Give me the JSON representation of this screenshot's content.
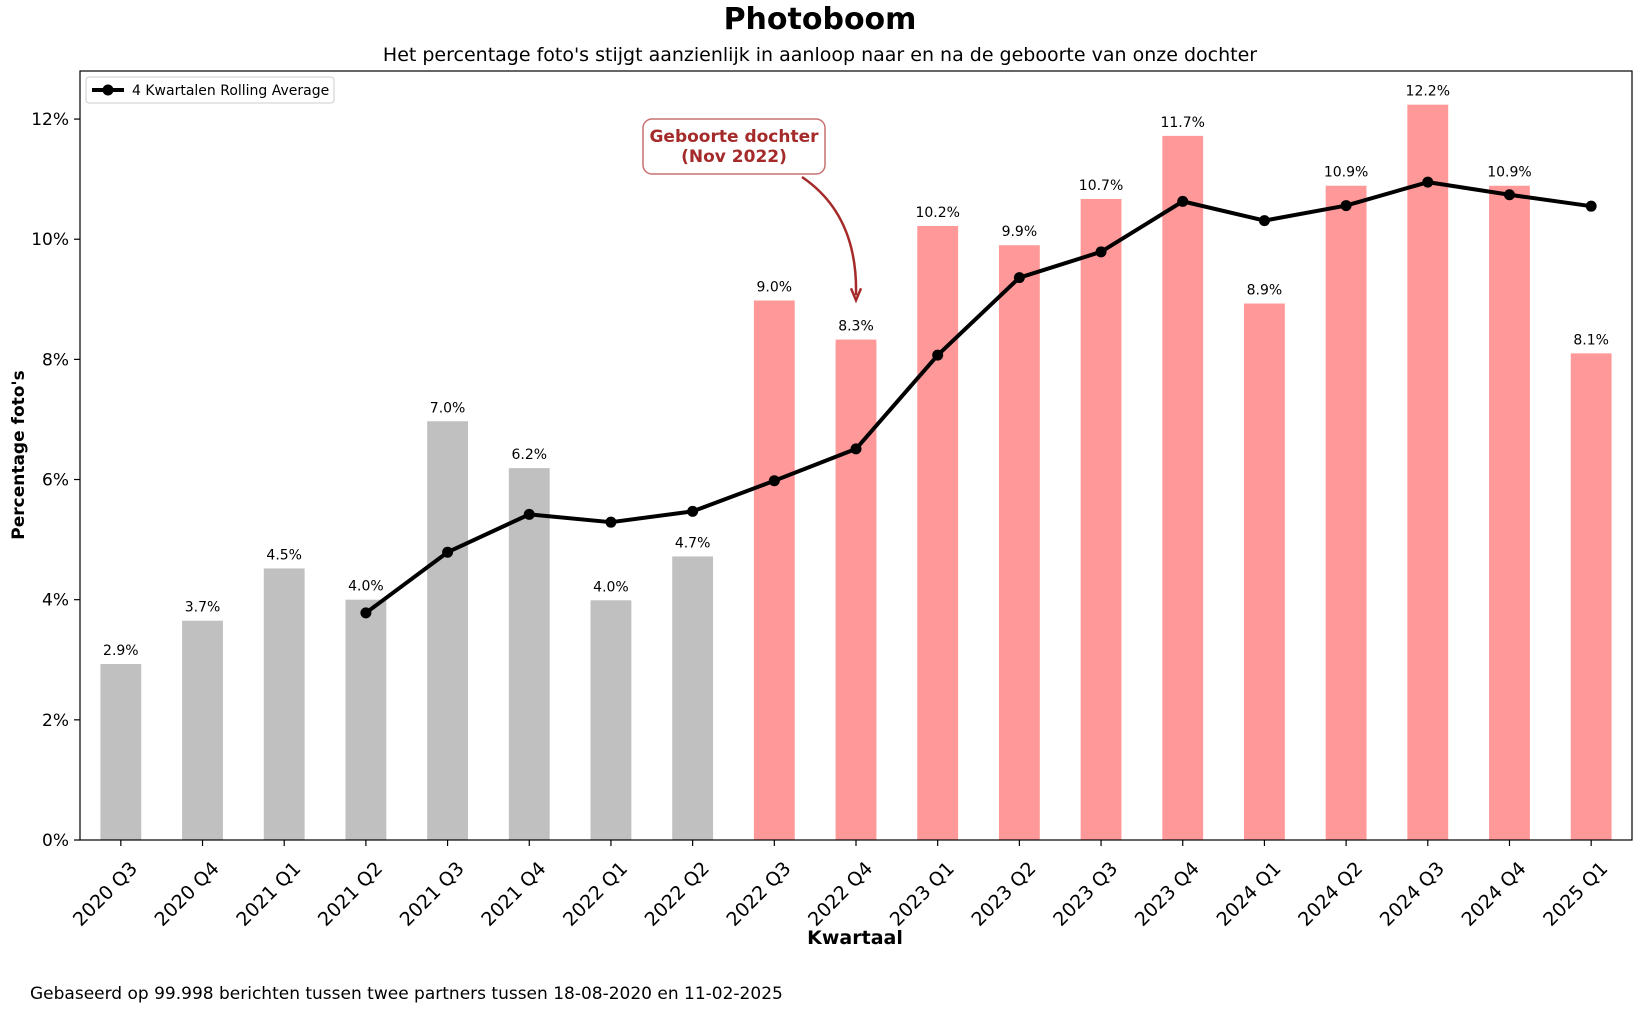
{
  "chart_data": {
    "type": "bar",
    "title": "Photoboom",
    "subtitle": "Het percentage foto's stijgt aanzienlijk in aanloop naar en na de geboorte van onze dochter",
    "xlabel": "Kwartaal",
    "ylabel": "Percentage foto's",
    "ylim": [
      0,
      12.8
    ],
    "yticks": [
      "0%",
      "2%",
      "4%",
      "6%",
      "8%",
      "10%",
      "12%"
    ],
    "grid": false,
    "categories": [
      "2020 Q3",
      "2020 Q4",
      "2021 Q1",
      "2021 Q2",
      "2021 Q3",
      "2021 Q4",
      "2022 Q1",
      "2022 Q2",
      "2022 Q3",
      "2022 Q4",
      "2023 Q1",
      "2023 Q2",
      "2023 Q3",
      "2023 Q4",
      "2024 Q1",
      "2024 Q2",
      "2024 Q3",
      "2024 Q4",
      "2025 Q1"
    ],
    "values": [
      2.93,
      3.65,
      4.52,
      4.0,
      6.97,
      6.19,
      3.99,
      4.72,
      8.98,
      8.33,
      10.22,
      9.9,
      10.67,
      11.72,
      8.93,
      10.89,
      12.24,
      10.89,
      8.1
    ],
    "value_labels": [
      "2.9%",
      "3.7%",
      "4.5%",
      "4.0%",
      "7.0%",
      "6.2%",
      "4.0%",
      "4.7%",
      "9.0%",
      "8.3%",
      "10.2%",
      "9.9%",
      "10.7%",
      "11.7%",
      "8.9%",
      "10.9%",
      "12.2%",
      "10.9%",
      "8.1%"
    ],
    "bar_colors": [
      "#c0c0c0",
      "#c0c0c0",
      "#c0c0c0",
      "#c0c0c0",
      "#c0c0c0",
      "#c0c0c0",
      "#c0c0c0",
      "#c0c0c0",
      "#ff9999",
      "#ff9999",
      "#ff9999",
      "#ff9999",
      "#ff9999",
      "#ff9999",
      "#ff9999",
      "#ff9999",
      "#ff9999",
      "#ff9999",
      "#ff9999"
    ],
    "rolling_average": {
      "name": "4 Kwartalen Rolling Average",
      "color": "#000000",
      "values": [
        null,
        null,
        null,
        3.78,
        4.79,
        5.42,
        5.29,
        5.47,
        5.98,
        6.51,
        8.07,
        9.36,
        9.79,
        10.63,
        10.31,
        10.56,
        10.95,
        10.74,
        10.55
      ]
    },
    "legend": {
      "placement": "top-left"
    },
    "annotation": {
      "text_lines": [
        "Geboorte dochter",
        "(Nov 2022)"
      ],
      "target_category": "2022 Q4",
      "target_value": 9.0,
      "color": "#a52a2a"
    }
  },
  "footnote": "Gebaseerd op 99.998 berichten tussen twee partners tussen 18-08-2020 en 11-02-2025"
}
